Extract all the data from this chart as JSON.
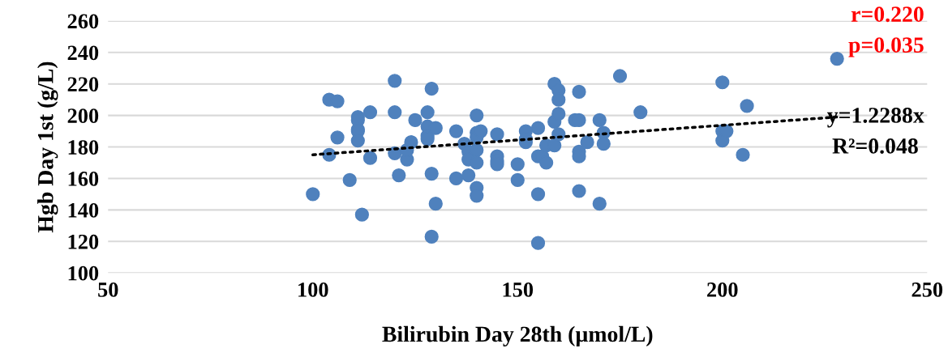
{
  "chart_data": {
    "type": "scatter",
    "xlabel": "Bilirubin Day 28th (µmol/L)",
    "ylabel": "Hgb Day 1st (g/L)",
    "xlim": [
      50,
      250
    ],
    "xticks": [
      50,
      100,
      150,
      200,
      250
    ],
    "ylim": [
      100,
      260
    ],
    "yticks": [
      100,
      120,
      140,
      160,
      180,
      200,
      220,
      240,
      260
    ],
    "grid": "y",
    "legend": false,
    "marker": "circle",
    "series": [
      {
        "color": "#4f81bd",
        "x": [
          100,
          104,
          104,
          106,
          106,
          109,
          111,
          111,
          111,
          111,
          111,
          112,
          114,
          114,
          120,
          120,
          120,
          121,
          123,
          123,
          124,
          125,
          128,
          128,
          128,
          128,
          129,
          129,
          129,
          130,
          130,
          135,
          135,
          137,
          138,
          138,
          138,
          140,
          140,
          140,
          140,
          140,
          140,
          140,
          141,
          145,
          145,
          145,
          145,
          150,
          150,
          152,
          152,
          152,
          155,
          155,
          155,
          155,
          156,
          157,
          157,
          159,
          159,
          159,
          160,
          160,
          160,
          160,
          164,
          165,
          165,
          165,
          165,
          165,
          167,
          170,
          170,
          171,
          171,
          175,
          180,
          200,
          200,
          200,
          201,
          205,
          206,
          228
        ],
        "values": [
          150,
          175,
          210,
          209,
          186,
          159,
          199,
          197,
          191,
          190,
          184,
          137,
          202,
          173,
          222,
          202,
          176,
          162,
          172,
          178,
          183,
          197,
          202,
          193,
          187,
          185,
          217,
          163,
          123,
          192,
          144,
          190,
          160,
          182,
          177,
          162,
          172,
          200,
          189,
          186,
          178,
          170,
          154,
          149,
          190,
          188,
          174,
          171,
          169,
          169,
          159,
          190,
          183,
          185,
          192,
          174,
          150,
          119,
          174,
          181,
          170,
          220,
          196,
          181,
          216,
          210,
          201,
          188,
          197,
          197,
          215,
          177,
          174,
          152,
          183,
          197,
          144,
          189,
          182,
          225,
          202,
          221,
          190,
          184,
          190,
          175,
          206,
          236
        ]
      },
      {
        "type": "line",
        "color": "#000000",
        "line_style": "dotted",
        "marker": "none",
        "x": [
          100,
          228
        ],
        "values": [
          175,
          199
        ]
      }
    ],
    "annotations": [
      "r=0.220",
      "p=0.035",
      "y=1.2288x",
      "R²=0.048"
    ]
  }
}
